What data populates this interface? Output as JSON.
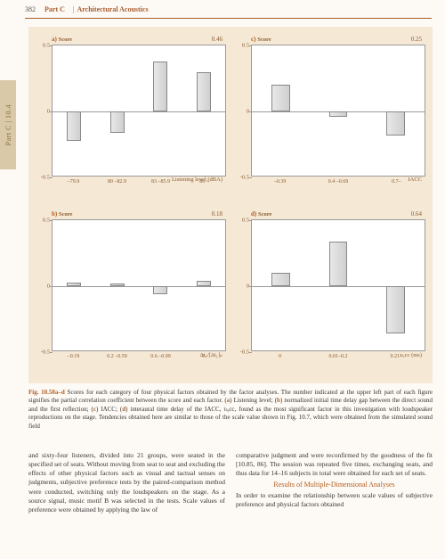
{
  "header": {
    "page_number": "382",
    "part_label": "Part C",
    "part_title": "Architectural Acoustics",
    "side_tab": "Part C | 10.4"
  },
  "charts": {
    "background_color": "#f5e8d5",
    "plot_bg": "#ffffff",
    "axis_color": "#999999",
    "bar_fill": "#dcdcdc",
    "bar_border": "#888888",
    "label_color": "#8a5a2e",
    "ylabel": "Score",
    "ylim": [
      -0.5,
      0.5
    ],
    "yticks": [
      -0.5,
      0,
      0.5
    ],
    "panels": [
      {
        "id": "a",
        "coef": "0.46",
        "xtitle": "Listening level (dBA)",
        "categories": [
          "–79.9",
          "80 –82.9",
          "83 –85.9",
          "86 –"
        ],
        "values": [
          -0.22,
          -0.16,
          0.38,
          0.3
        ]
      },
      {
        "id": "c",
        "coef": "0.25",
        "xtitle": "IACC",
        "categories": [
          "–0.39",
          "0.4 –0.69",
          "0.7–"
        ],
        "values": [
          0.2,
          -0.04,
          -0.18
        ]
      },
      {
        "id": "b",
        "coef": "0.18",
        "xtitle": "Δt₁/[Δt₁]ₚ",
        "categories": [
          "–0.19",
          "0.2 –0.59",
          "0.6 –0.99",
          "1–"
        ],
        "values": [
          0.03,
          0.02,
          -0.06,
          0.04
        ]
      },
      {
        "id": "d",
        "coef": "0.64",
        "xtitle": "τₗₐcc (ms)",
        "categories": [
          "0",
          "0.01–0.2",
          "0.21–"
        ],
        "values": [
          0.1,
          0.34,
          -0.36
        ]
      }
    ]
  },
  "caption": {
    "fig_label": "Fig. 10.50a–d",
    "text_before": " Scores for each category of four physical factors obtained by the factor analyses. The number indicated at the upper left part of each figure signifies the partial correlation coefficient between the score and each factor. (",
    "a": "a",
    "a_text": ") Listening level; (",
    "b": "b",
    "b_text": ") normalized initial time delay gap between the direct sound and the first reflection; (",
    "c": "c",
    "c_text": ") IACC; (",
    "d": "d",
    "d_text": ") interaural time delay of the IACC, τₗₐcc, found as the most significant factor in this investigation with loudspeaker reproductions on the stage. Tendencies obtained here are similar to those of the scale value shown in Fig. 10.7, which were obtained from the simulated sound field"
  },
  "body": {
    "left": "and sixty-four listeners, divided into 21 groups, were seated in the specified set of seats. Without moving from seat to seat and excluding the effects of other physical factors such as visual and tactual senses on judgments, subjective preference tests by the paired-comparison method were conducted, switching only the loudspeakers on the stage. As a source signal, music motif B was selected in the tests. Scale values of preference were obtained by applying the law of",
    "right_p1": "comparative judgment and were reconfirmed by the goodness of the fit [10.85, 86]. The session was repeated five times, exchanging seats, and thus data for 14–16 subjects in total were obtained for each set of seats.",
    "section_head": "Results of Multiple-Dimensional Analyses",
    "right_p2": "In order to examine the relationship between scale values of subjective preference and physical factors obtained"
  }
}
